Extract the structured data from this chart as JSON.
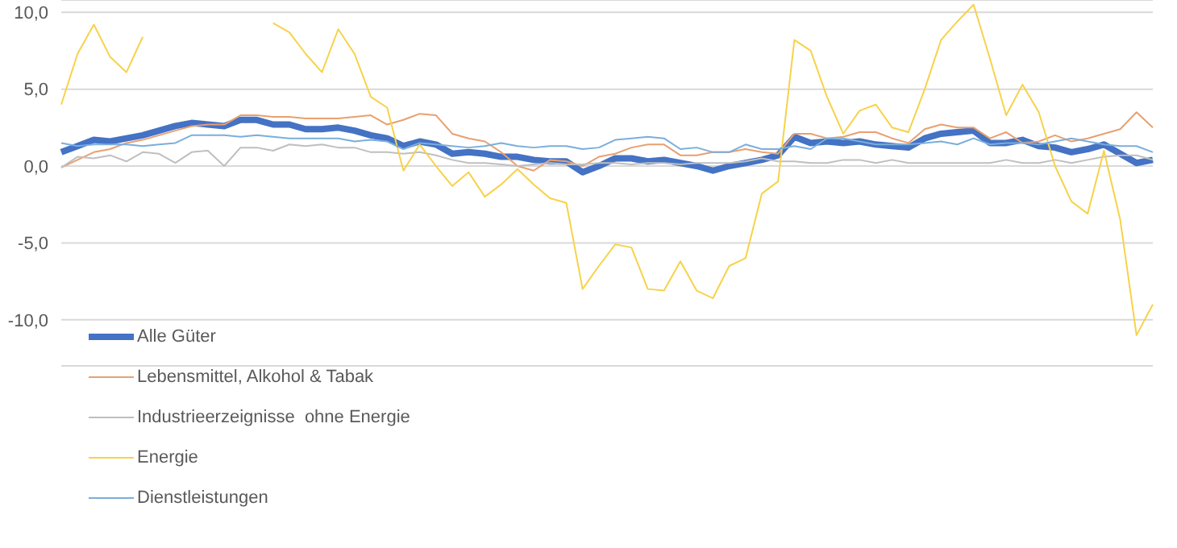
{
  "chart_data": {
    "type": "line",
    "categories": [
      null,
      null,
      null,
      null,
      null,
      null,
      null,
      null,
      null,
      null,
      null,
      null,
      null,
      null,
      null,
      null,
      null,
      null,
      null,
      null,
      null,
      null,
      null,
      null,
      null,
      null,
      null,
      null,
      null,
      null,
      null,
      null,
      null,
      null,
      null,
      null,
      null,
      null,
      null,
      null,
      null,
      null,
      null,
      null,
      null,
      null,
      null,
      null,
      null,
      null,
      null,
      null,
      null,
      null,
      null,
      null,
      null,
      null,
      null,
      null,
      null,
      null,
      null,
      null,
      null,
      null,
      null,
      null
    ],
    "series": [
      {
        "name": "Alle Güter",
        "color": "#4472c4",
        "values": [
          0.9,
          1.3,
          1.7,
          1.6,
          1.8,
          2.0,
          2.3,
          2.6,
          2.8,
          2.7,
          2.6,
          3.0,
          3.0,
          2.7,
          2.7,
          2.4,
          2.4,
          2.5,
          2.3,
          2.0,
          1.8,
          1.3,
          1.6,
          1.4,
          0.8,
          0.9,
          0.8,
          0.6,
          0.6,
          0.4,
          0.3,
          0.3,
          -0.4,
          0.0,
          0.5,
          0.5,
          0.3,
          0.4,
          0.2,
          0.0,
          -0.3,
          0.0,
          0.2,
          0.4,
          0.7,
          1.9,
          1.5,
          1.6,
          1.5,
          1.6,
          1.4,
          1.3,
          1.2,
          1.8,
          2.1,
          2.2,
          2.3,
          1.5,
          1.5,
          1.7,
          1.3,
          1.2,
          0.9,
          1.1,
          1.4,
          0.8,
          0.2,
          0.4
        ]
      },
      {
        "name": "Lebensmittel, Alkohol & Tabak",
        "color": "#e8a070",
        "values": [
          -0.1,
          0.4,
          0.9,
          1.1,
          1.5,
          1.7,
          2.0,
          2.3,
          2.6,
          2.7,
          2.7,
          3.3,
          3.3,
          3.2,
          3.2,
          3.1,
          3.1,
          3.1,
          3.2,
          3.3,
          2.7,
          3.0,
          3.4,
          3.3,
          2.1,
          1.8,
          1.6,
          0.9,
          0.0,
          -0.3,
          0.4,
          0.3,
          0.0,
          0.6,
          0.8,
          1.2,
          1.4,
          1.4,
          0.7,
          0.7,
          0.9,
          0.9,
          1.1,
          0.9,
          0.8,
          2.1,
          2.1,
          1.8,
          1.9,
          2.2,
          2.2,
          1.8,
          1.5,
          2.4,
          2.7,
          2.5,
          2.5,
          1.8,
          2.2,
          1.5,
          1.6,
          2.0,
          1.6,
          1.8,
          2.1,
          2.4,
          3.5,
          2.5
        ]
      },
      {
        "name": "Industrieerzeignisse  ohne Energie",
        "color": "#bfbfbf",
        "values": [
          -0.1,
          0.6,
          0.5,
          0.7,
          0.3,
          0.9,
          0.8,
          0.2,
          0.9,
          1.0,
          0.0,
          1.2,
          1.2,
          1.0,
          1.4,
          1.3,
          1.4,
          1.2,
          1.2,
          0.9,
          0.9,
          0.8,
          0.9,
          0.7,
          0.4,
          0.2,
          0.2,
          0.1,
          0.0,
          0.1,
          0.2,
          0.1,
          0.1,
          0.2,
          0.2,
          0.1,
          0.2,
          0.2,
          0.1,
          0.2,
          0.2,
          0.2,
          0.3,
          0.5,
          0.3,
          0.3,
          0.2,
          0.2,
          0.4,
          0.4,
          0.2,
          0.4,
          0.2,
          0.2,
          0.2,
          0.2,
          0.2,
          0.2,
          0.4,
          0.2,
          0.2,
          0.4,
          0.2,
          0.4,
          0.6,
          0.7,
          0.7,
          0.4
        ]
      },
      {
        "name": "Energie",
        "color": "#f7d24a",
        "values": [
          4.0,
          7.3,
          9.2,
          7.1,
          6.1,
          8.4,
          null,
          null,
          null,
          null,
          null,
          null,
          null,
          9.3,
          8.7,
          7.3,
          6.1,
          8.9,
          7.3,
          4.5,
          3.8,
          -0.3,
          1.4,
          0.0,
          -1.3,
          -0.4,
          -2.0,
          -1.2,
          -0.2,
          -1.2,
          -2.1,
          -2.4,
          -8.0,
          -6.5,
          -5.1,
          -5.3,
          -8.0,
          -8.1,
          -6.2,
          -8.1,
          -8.6,
          -6.5,
          -6.0,
          -1.8,
          -1.0,
          8.2,
          7.5,
          4.5,
          2.1,
          3.6,
          4.0,
          2.5,
          2.2,
          5.0,
          8.2,
          9.4,
          10.5,
          7.0,
          3.3,
          5.3,
          3.5,
          0.0,
          -2.3,
          -3.1,
          1.0,
          -3.5,
          -11.0,
          -9.0
        ]
      },
      {
        "name": "Dienstleistungen",
        "color": "#7aaedc",
        "values": [
          1.5,
          1.3,
          1.4,
          1.4,
          1.4,
          1.3,
          1.4,
          1.5,
          2.0,
          2.0,
          2.0,
          1.9,
          2.0,
          1.9,
          1.8,
          1.8,
          1.8,
          1.8,
          1.6,
          1.7,
          1.6,
          1.1,
          1.5,
          1.4,
          1.3,
          1.2,
          1.3,
          1.5,
          1.3,
          1.2,
          1.3,
          1.3,
          1.1,
          1.2,
          1.7,
          1.8,
          1.9,
          1.8,
          1.1,
          1.2,
          0.9,
          0.9,
          1.4,
          1.1,
          1.1,
          1.3,
          1.1,
          1.8,
          1.8,
          1.6,
          1.4,
          1.4,
          1.4,
          1.5,
          1.6,
          1.4,
          1.8,
          1.4,
          1.5,
          1.5,
          1.4,
          1.6,
          1.8,
          1.6,
          1.4,
          1.3,
          1.3,
          0.9
        ]
      }
    ],
    "ylim": [
      -13,
      10.8
    ],
    "yticks": [
      {
        "value": 10,
        "label": "10,0"
      },
      {
        "value": 5,
        "label": "5,0"
      },
      {
        "value": 0,
        "label": "0,0"
      },
      {
        "value": -5,
        "label": "-5,0"
      },
      {
        "value": -10,
        "label": "-10,0"
      }
    ],
    "grid": "y",
    "legend": "bottom left",
    "tick_labels": "y",
    "marker": "none",
    "line_style": "solid"
  }
}
